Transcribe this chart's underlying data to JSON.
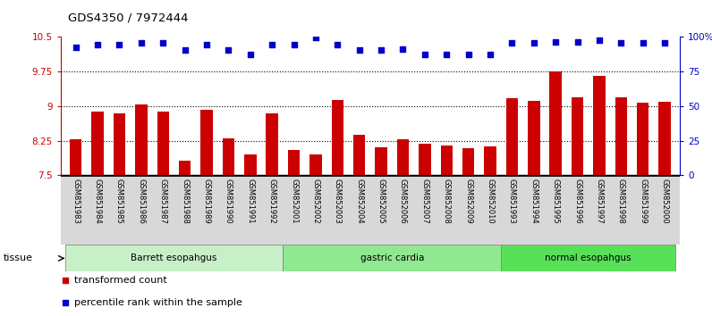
{
  "title": "GDS4350 / 7972444",
  "samples": [
    "GSM851983",
    "GSM851984",
    "GSM851985",
    "GSM851986",
    "GSM851987",
    "GSM851988",
    "GSM851989",
    "GSM851990",
    "GSM851991",
    "GSM851992",
    "GSM852001",
    "GSM852002",
    "GSM852003",
    "GSM852004",
    "GSM852005",
    "GSM852006",
    "GSM852007",
    "GSM852008",
    "GSM852009",
    "GSM852010",
    "GSM851993",
    "GSM851994",
    "GSM851995",
    "GSM851996",
    "GSM851997",
    "GSM851998",
    "GSM851999",
    "GSM852000"
  ],
  "bar_values": [
    8.28,
    8.88,
    8.83,
    9.03,
    8.88,
    7.82,
    8.91,
    8.3,
    7.95,
    8.84,
    8.05,
    7.95,
    9.12,
    8.37,
    8.1,
    8.28,
    8.18,
    8.14,
    8.08,
    8.13,
    9.17,
    9.11,
    9.75,
    9.18,
    9.65,
    9.18,
    9.06,
    9.08
  ],
  "percentile_values": [
    92,
    94,
    94,
    95,
    95,
    90,
    94,
    90,
    87,
    94,
    94,
    99,
    94,
    90,
    90,
    91,
    87,
    87,
    87,
    87,
    95,
    95,
    96,
    96,
    97,
    95,
    95,
    95
  ],
  "groups": [
    {
      "label": "Barrett esopahgus",
      "start": 0,
      "end": 10,
      "color": "#c8f0c8"
    },
    {
      "label": "gastric cardia",
      "start": 10,
      "end": 20,
      "color": "#90e890"
    },
    {
      "label": "normal esopahgus",
      "start": 20,
      "end": 28,
      "color": "#58e058"
    }
  ],
  "ylim_left": [
    7.5,
    10.5
  ],
  "ylim_right": [
    0,
    100
  ],
  "yticks_left": [
    7.5,
    8.25,
    9.0,
    9.75,
    10.5
  ],
  "ytick_labels_left": [
    "7.5",
    "8.25",
    "9",
    "9.75",
    "10.5"
  ],
  "yticks_right": [
    0,
    25,
    50,
    75,
    100
  ],
  "ytick_labels_right": [
    "0",
    "25",
    "50",
    "75",
    "100%"
  ],
  "hlines": [
    8.25,
    9.0,
    9.75
  ],
  "bar_color": "#cc0000",
  "dot_color": "#0000cc",
  "bar_width": 0.55,
  "legend_items": [
    {
      "color": "#cc0000",
      "label": "transformed count"
    },
    {
      "color": "#0000cc",
      "label": "percentile rank within the sample"
    }
  ],
  "tissue_label": "tissue",
  "xticklabel_bg": "#d8d8d8"
}
